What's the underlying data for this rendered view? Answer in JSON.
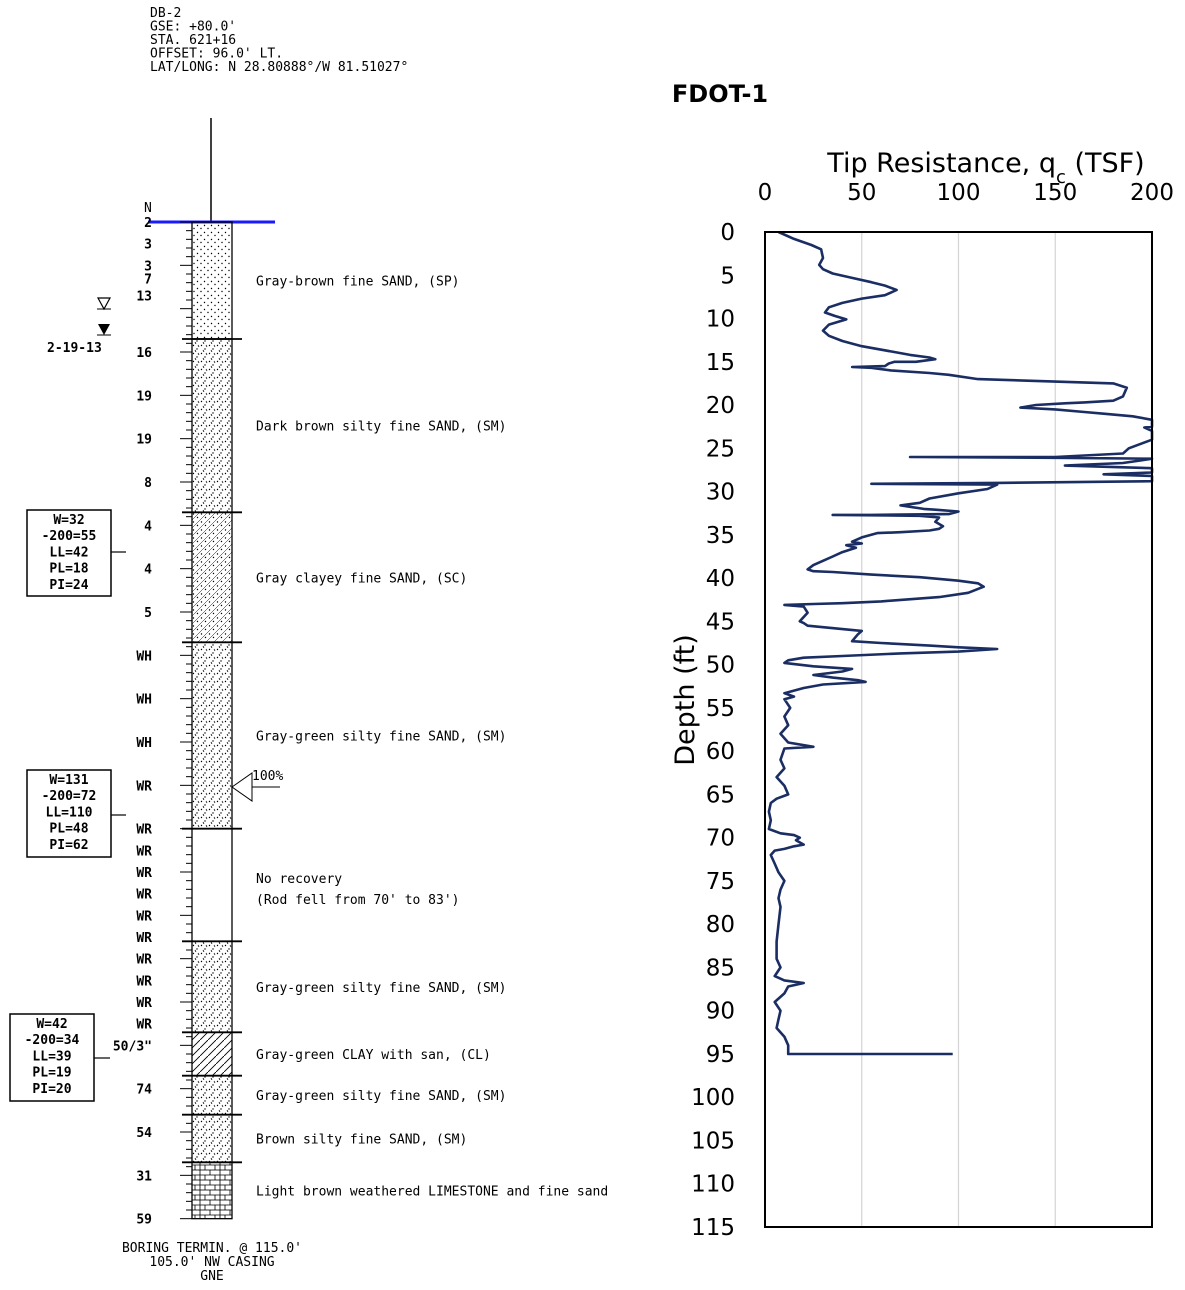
{
  "boring_log": {
    "header": [
      "DB-2",
      "GSE: +80.0'",
      "STA. 621+16",
      "OFFSET: 96.0' LT.",
      "LAT/LONG: N 28.80888°/W 81.51027°"
    ],
    "n_label": "N",
    "water_date": "2-19-13",
    "n_values": [
      {
        "depth": 0,
        "text": "2"
      },
      {
        "depth": 2.5,
        "text": "3"
      },
      {
        "depth": 5,
        "text": "3"
      },
      {
        "depth": 6.5,
        "text": "7"
      },
      {
        "depth": 8.5,
        "text": "13"
      },
      {
        "depth": 15,
        "text": "16"
      },
      {
        "depth": 20,
        "text": "19"
      },
      {
        "depth": 25,
        "text": "19"
      },
      {
        "depth": 30,
        "text": "8"
      },
      {
        "depth": 35,
        "text": "4"
      },
      {
        "depth": 40,
        "text": "4"
      },
      {
        "depth": 45,
        "text": "5"
      },
      {
        "depth": 50,
        "text": "WH"
      },
      {
        "depth": 55,
        "text": "WH"
      },
      {
        "depth": 60,
        "text": "WH"
      },
      {
        "depth": 65,
        "text": "WR"
      },
      {
        "depth": 70,
        "text": "WR"
      },
      {
        "depth": 72.5,
        "text": "WR"
      },
      {
        "depth": 75,
        "text": "WR"
      },
      {
        "depth": 77.5,
        "text": "WR"
      },
      {
        "depth": 80,
        "text": "WR"
      },
      {
        "depth": 82.5,
        "text": "WR"
      },
      {
        "depth": 85,
        "text": "WR"
      },
      {
        "depth": 87.5,
        "text": "WR"
      },
      {
        "depth": 90,
        "text": "WR"
      },
      {
        "depth": 92.5,
        "text": "WR"
      },
      {
        "depth": 95,
        "text": "50/3\""
      },
      {
        "depth": 100,
        "text": "74"
      },
      {
        "depth": 105,
        "text": "54"
      },
      {
        "depth": 110,
        "text": "31"
      },
      {
        "depth": 115,
        "text": "59"
      }
    ],
    "strata": [
      {
        "top": 0,
        "bottom": 13.5,
        "pattern": "sand",
        "desc": "Gray-brown fine SAND, (SP)"
      },
      {
        "top": 13.5,
        "bottom": 33.5,
        "pattern": "silty",
        "desc": "Dark brown silty fine SAND, (SM)"
      },
      {
        "top": 33.5,
        "bottom": 48.5,
        "pattern": "clayey",
        "desc": "Gray clayey fine SAND, (SC)"
      },
      {
        "top": 48.5,
        "bottom": 70,
        "pattern": "silty",
        "desc": "Gray-green silty fine SAND, (SM)"
      },
      {
        "top": 70,
        "bottom": 83,
        "pattern": "none",
        "desc": "No recovery"
      },
      {
        "top": 83,
        "bottom": 93.5,
        "pattern": "silty",
        "desc": "Gray-green silty fine SAND, (SM)"
      },
      {
        "top": 93.5,
        "bottom": 98.5,
        "pattern": "clay",
        "desc": "Gray-green CLAY with san, (CL)"
      },
      {
        "top": 98.5,
        "bottom": 103,
        "pattern": "silty",
        "desc": "Gray-green silty fine SAND, (SM)"
      },
      {
        "top": 103,
        "bottom": 108.5,
        "pattern": "silty",
        "desc": "Brown silty fine SAND, (SM)"
      },
      {
        "top": 108.5,
        "bottom": 115,
        "pattern": "limestone",
        "desc": "Light brown weathered LIMESTONE and fine sand"
      }
    ],
    "no_recovery_note": "(Rod fell from 70' to 83')",
    "lab_boxes": [
      {
        "lines": [
          "W=32",
          "-200=55",
          "LL=42",
          "PL=18",
          "PI=24"
        ]
      },
      {
        "lines": [
          "W=131",
          "-200=72",
          "LL=110",
          "PL=48",
          "PI=62"
        ]
      },
      {
        "lines": [
          "W=42",
          "-200=34",
          "LL=39",
          "PL=19",
          "PI=20"
        ]
      }
    ],
    "recovery_label": "100%",
    "footer": [
      "BORING TERMIN. @ 115.0'",
      "105.0' NW CASING",
      "GNE"
    ]
  },
  "chart_data": {
    "type": "line",
    "title": "FDOT-1",
    "xlabel": "Tip Resistance, q",
    "xlabel_sub": "c",
    "xlabel_unit": " (TSF)",
    "ylabel": "Depth (ft)",
    "xlim": [
      0,
      200
    ],
    "ylim": [
      0,
      115
    ],
    "x_ticks": [
      0,
      50,
      100,
      150,
      200
    ],
    "y_ticks": [
      0,
      5,
      10,
      15,
      20,
      25,
      30,
      35,
      40,
      45,
      50,
      55,
      60,
      65,
      70,
      75,
      80,
      85,
      90,
      95,
      100,
      105,
      110,
      115
    ],
    "grid": "vertical",
    "series": [
      {
        "color": "#1b2e63",
        "points": [
          [
            7,
            0
          ],
          [
            15,
            0.8
          ],
          [
            24,
            1.5
          ],
          [
            29,
            2
          ],
          [
            30,
            3
          ],
          [
            28,
            3.8
          ],
          [
            30,
            4.3
          ],
          [
            35,
            4.8
          ],
          [
            45,
            5.3
          ],
          [
            55,
            5.8
          ],
          [
            62,
            6.2
          ],
          [
            68,
            6.7
          ],
          [
            62,
            7.3
          ],
          [
            50,
            7.7
          ],
          [
            40,
            8.2
          ],
          [
            33,
            8.7
          ],
          [
            31,
            9.3
          ],
          [
            36,
            9.7
          ],
          [
            42,
            10.1
          ],
          [
            33,
            10.7
          ],
          [
            30,
            11.4
          ],
          [
            33,
            12
          ],
          [
            40,
            12.6
          ],
          [
            50,
            13.2
          ],
          [
            65,
            13.8
          ],
          [
            75,
            14.2
          ],
          [
            85,
            14.5
          ],
          [
            88,
            14.7
          ],
          [
            78,
            15
          ],
          [
            67,
            15
          ],
          [
            64,
            15.2
          ],
          [
            62,
            15.5
          ],
          [
            45,
            15.6
          ],
          [
            55,
            15.7
          ],
          [
            65,
            16
          ],
          [
            85,
            16.3
          ],
          [
            95,
            16.5
          ],
          [
            110,
            17
          ],
          [
            180,
            17.5
          ],
          [
            187,
            18
          ],
          [
            185,
            19
          ],
          [
            180,
            19.5
          ],
          [
            165,
            19.7
          ],
          [
            155,
            19.8
          ],
          [
            140,
            20
          ],
          [
            132,
            20.3
          ],
          [
            150,
            20.5
          ],
          [
            165,
            20.8
          ],
          [
            175,
            21
          ],
          [
            190,
            21.3
          ],
          [
            200,
            21.7
          ],
          [
            200,
            22.5
          ],
          [
            196,
            22.6
          ],
          [
            200,
            23
          ],
          [
            200,
            24
          ],
          [
            188,
            25
          ],
          [
            185,
            25.6
          ],
          [
            150,
            26
          ],
          [
            75,
            26
          ],
          [
            150,
            26.1
          ],
          [
            200,
            26.2
          ],
          [
            185,
            26.7
          ],
          [
            155,
            27
          ],
          [
            200,
            27.3
          ],
          [
            200,
            27.8
          ],
          [
            175,
            28
          ],
          [
            200,
            28.2
          ],
          [
            200,
            28.8
          ],
          [
            120,
            29
          ],
          [
            55,
            29.1
          ],
          [
            120,
            29.2
          ],
          [
            115,
            29.7
          ],
          [
            100,
            30.2
          ],
          [
            85,
            30.8
          ],
          [
            80,
            31.3
          ],
          [
            70,
            31.6
          ],
          [
            82,
            32
          ],
          [
            88,
            32.1
          ],
          [
            100,
            32.3
          ],
          [
            95,
            32.6
          ],
          [
            55,
            32.7
          ],
          [
            35,
            32.7
          ],
          [
            80,
            32.8
          ],
          [
            90,
            33
          ],
          [
            88,
            33.5
          ],
          [
            92,
            34
          ],
          [
            90,
            34.3
          ],
          [
            85,
            34.5
          ],
          [
            70,
            34.7
          ],
          [
            58,
            34.8
          ],
          [
            50,
            35.3
          ],
          [
            45,
            35.8
          ],
          [
            50,
            36
          ],
          [
            42,
            36.2
          ],
          [
            47,
            36.5
          ],
          [
            40,
            37
          ],
          [
            35,
            37.5
          ],
          [
            30,
            38
          ],
          [
            25,
            38.5
          ],
          [
            22,
            39
          ],
          [
            25,
            39.2
          ],
          [
            35,
            39.3
          ],
          [
            55,
            39.6
          ],
          [
            80,
            39.9
          ],
          [
            100,
            40.3
          ],
          [
            110,
            40.6
          ],
          [
            113,
            41
          ],
          [
            105,
            41.7
          ],
          [
            90,
            42.2
          ],
          [
            60,
            42.7
          ],
          [
            40,
            42.9
          ],
          [
            25,
            43
          ],
          [
            10,
            43.1
          ],
          [
            20,
            43.3
          ],
          [
            22,
            44
          ],
          [
            18,
            45
          ],
          [
            20,
            45.2
          ],
          [
            22,
            45.5
          ],
          [
            40,
            45.9
          ],
          [
            50,
            46.1
          ],
          [
            48,
            46.5
          ],
          [
            45,
            47.3
          ],
          [
            60,
            47.5
          ],
          [
            85,
            47.8
          ],
          [
            100,
            48
          ],
          [
            120,
            48.2
          ],
          [
            100,
            48.5
          ],
          [
            70,
            48.7
          ],
          [
            40,
            49
          ],
          [
            20,
            49.2
          ],
          [
            12,
            49.5
          ],
          [
            10,
            49.8
          ],
          [
            25,
            50.2
          ],
          [
            45,
            50.5
          ],
          [
            40,
            50.8
          ],
          [
            25,
            51.2
          ],
          [
            35,
            51.5
          ],
          [
            48,
            51.8
          ],
          [
            52,
            52
          ],
          [
            30,
            52.3
          ],
          [
            20,
            52.7
          ],
          [
            15,
            53
          ],
          [
            10,
            53.3
          ],
          [
            15,
            53.7
          ],
          [
            10,
            54
          ],
          [
            13,
            55
          ],
          [
            10,
            56
          ],
          [
            12,
            57
          ],
          [
            8,
            58
          ],
          [
            12,
            59
          ],
          [
            25,
            59.5
          ],
          [
            10,
            59.7
          ],
          [
            8,
            61
          ],
          [
            10,
            62
          ],
          [
            6,
            63
          ],
          [
            10,
            64
          ],
          [
            12,
            65
          ],
          [
            6,
            65.5
          ],
          [
            3,
            66
          ],
          [
            2,
            67
          ],
          [
            3,
            68
          ],
          [
            2,
            69
          ],
          [
            8,
            69.5
          ],
          [
            15,
            69.7
          ],
          [
            18,
            70
          ],
          [
            16,
            70.3
          ],
          [
            20,
            70.8
          ],
          [
            15,
            71
          ],
          [
            10,
            71.3
          ],
          [
            5,
            71.5
          ],
          [
            3,
            72
          ],
          [
            5,
            73
          ],
          [
            7,
            74
          ],
          [
            10,
            75
          ],
          [
            8,
            76
          ],
          [
            7,
            77
          ],
          [
            8,
            78
          ],
          [
            7,
            80
          ],
          [
            6,
            82
          ],
          [
            6,
            84
          ],
          [
            8,
            85
          ],
          [
            5,
            86
          ],
          [
            10,
            86.5
          ],
          [
            20,
            86.8
          ],
          [
            12,
            87.2
          ],
          [
            10,
            88
          ],
          [
            5,
            89
          ],
          [
            8,
            90
          ],
          [
            7,
            91
          ],
          [
            6,
            92
          ],
          [
            10,
            93
          ],
          [
            12,
            94
          ],
          [
            12,
            95
          ],
          [
            15,
            95
          ],
          [
            97,
            95
          ]
        ]
      }
    ]
  }
}
